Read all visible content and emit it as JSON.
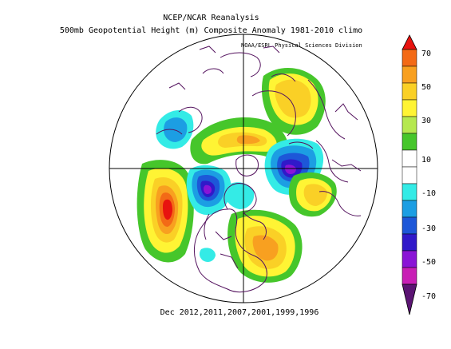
{
  "titles": {
    "line1": "NCEP/NCAR Reanalysis",
    "line2": "500mb Geopotential Height (m) Composite Anomaly 1981-2010 climo",
    "credit": "NOAA/ESRL Physical Sciences Division",
    "footer": "Dec 2012,2011,2007,2001,1999,1996"
  },
  "colorbar": {
    "labels": [
      "70",
      "50",
      "30",
      "10",
      "-10",
      "-30",
      "-50",
      "-70"
    ],
    "colors": [
      "#e8130f",
      "#f36a16",
      "#f8a020",
      "#fad026",
      "#fff434",
      "#b5e84f",
      "#46c62b",
      "#ffffff",
      "#34ebe6",
      "#1c9ee3",
      "#1d57d8",
      "#3019c9",
      "#8a14d6",
      "#c81fb5",
      "#5b1473"
    ]
  },
  "colors": {
    "boundary": "#55145f",
    "grid": "#000000"
  }
}
